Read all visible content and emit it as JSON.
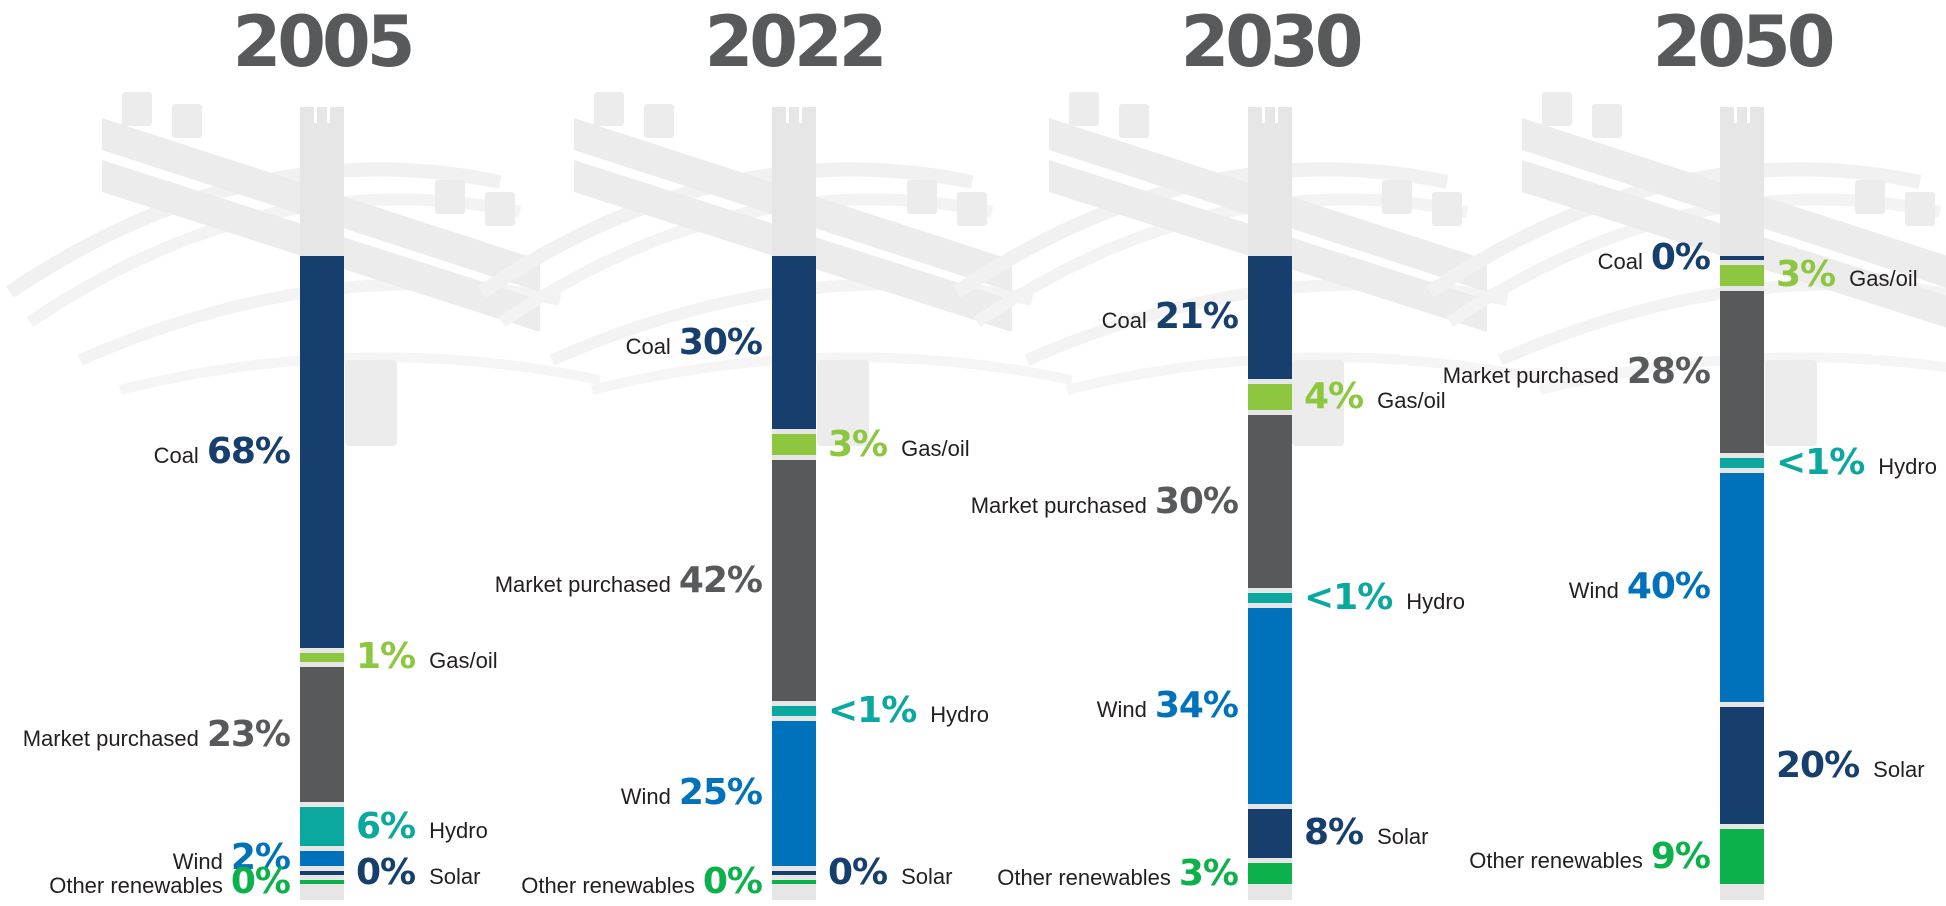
{
  "colors": {
    "Coal": "#173f6e",
    "Gas/oil": "#8dc63f",
    "Market purchased": "#58595b",
    "Hydro": "#0aa89e",
    "Wind": "#0072bc",
    "Solar": "#173f6e",
    "Other renewables": "#0db14b"
  },
  "chart_data": [
    {
      "type": "bar",
      "title": "2005",
      "stacked": true,
      "series": [
        {
          "name": "Coal",
          "value": 68,
          "label": "68%"
        },
        {
          "name": "Gas/oil",
          "value": 1,
          "label": "1%"
        },
        {
          "name": "Market purchased",
          "value": 23,
          "label": "23%"
        },
        {
          "name": "Hydro",
          "value": 6,
          "label": "6%"
        },
        {
          "name": "Wind",
          "value": 2,
          "label": "2%"
        },
        {
          "name": "Solar",
          "value": 0,
          "label": "0%"
        },
        {
          "name": "Other renewables",
          "value": 0,
          "label": "0%"
        }
      ]
    },
    {
      "type": "bar",
      "title": "2022",
      "stacked": true,
      "series": [
        {
          "name": "Coal",
          "value": 30,
          "label": "30%"
        },
        {
          "name": "Gas/oil",
          "value": 3,
          "label": "3%"
        },
        {
          "name": "Market purchased",
          "value": 42,
          "label": "42%"
        },
        {
          "name": "Hydro",
          "value": 1,
          "label": "<1%"
        },
        {
          "name": "Wind",
          "value": 25,
          "label": "25%"
        },
        {
          "name": "Solar",
          "value": 0,
          "label": "0%"
        },
        {
          "name": "Other renewables",
          "value": 0,
          "label": "0%"
        }
      ]
    },
    {
      "type": "bar",
      "title": "2030",
      "stacked": true,
      "series": [
        {
          "name": "Coal",
          "value": 21,
          "label": "21%"
        },
        {
          "name": "Gas/oil",
          "value": 4,
          "label": "4%"
        },
        {
          "name": "Market purchased",
          "value": 30,
          "label": "30%"
        },
        {
          "name": "Hydro",
          "value": 1,
          "label": "<1%"
        },
        {
          "name": "Wind",
          "value": 34,
          "label": "34%"
        },
        {
          "name": "Solar",
          "value": 8,
          "label": "8%"
        },
        {
          "name": "Other renewables",
          "value": 3,
          "label": "3%"
        }
      ]
    },
    {
      "type": "bar",
      "title": "2050",
      "stacked": true,
      "series": [
        {
          "name": "Coal",
          "value": 0,
          "label": "0%"
        },
        {
          "name": "Gas/oil",
          "value": 3,
          "label": "3%"
        },
        {
          "name": "Market purchased",
          "value": 28,
          "label": "28%"
        },
        {
          "name": "Hydro",
          "value": 1,
          "label": "<1%"
        },
        {
          "name": "Wind",
          "value": 40,
          "label": "40%"
        },
        {
          "name": "Solar",
          "value": 20,
          "label": "20%"
        },
        {
          "name": "Other renewables",
          "value": 9,
          "label": "9%"
        }
      ]
    }
  ]
}
